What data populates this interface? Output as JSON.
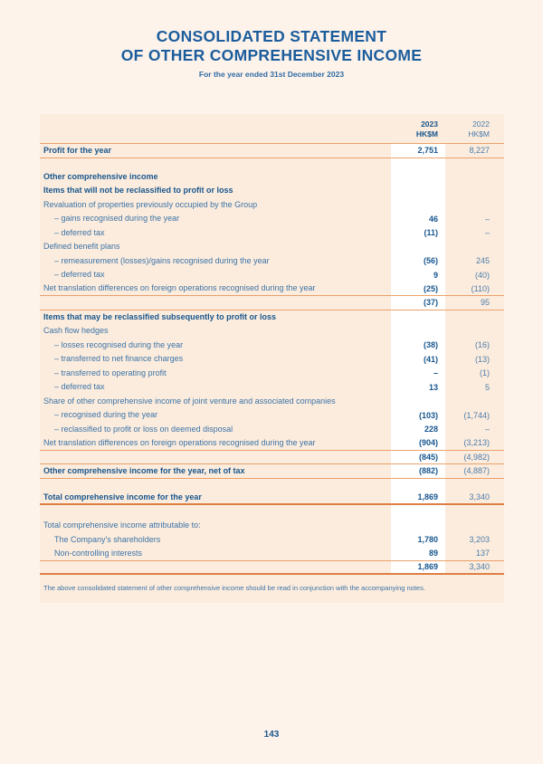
{
  "page": {
    "title_line1": "CONSOLIDATED STATEMENT",
    "title_line2": "OF OTHER COMPREHENSIVE INCOME",
    "subtitle": "For the year ended 31st December 2023",
    "footnote": "The above consolidated statement of other comprehensive income should be read in conjunction with the accompanying notes.",
    "page_number": "143"
  },
  "colors": {
    "page_bg": "#fef3eb",
    "panel_bg": "#fcecdd",
    "stripe_bg": "#ffffff",
    "heading_blue": "#1b5d9c",
    "bold_text_blue": "#17568e",
    "regular_text_blue": "#3a73a7",
    "secondary_value_blue": "#4b7cab",
    "rule_thin_orange": "#eaa26c",
    "rule_thick_orange": "#dd7f42"
  },
  "table": {
    "columns": [
      {
        "year": "2023",
        "unit": "HK$M"
      },
      {
        "year": "2022",
        "unit": "HK$M"
      }
    ],
    "rows": [
      {
        "label": "Profit for the year",
        "bold": true,
        "v2023": "2,751",
        "v2022": "8,227",
        "rule": true
      },
      {
        "type": "spacer",
        "h": 13
      },
      {
        "label": "Other comprehensive income",
        "bold": true
      },
      {
        "label": "Items that will not be reclassified to profit or loss",
        "bold": true
      },
      {
        "label": "Revaluation of properties previously occupied by the Group"
      },
      {
        "label": "– gains recognised during the year",
        "indent": true,
        "v2023": "46",
        "v2022": "–"
      },
      {
        "label": "– deferred tax",
        "indent": true,
        "v2023": "(11)",
        "v2022": "–"
      },
      {
        "label": "Defined benefit plans"
      },
      {
        "label": "– remeasurement (losses)/gains recognised during the year",
        "indent": true,
        "v2023": "(56)",
        "v2022": "245"
      },
      {
        "label": "– deferred tax",
        "indent": true,
        "v2023": "9",
        "v2022": "(40)"
      },
      {
        "label": "Net translation differences on foreign operations recognised during the year",
        "v2023": "(25)",
        "v2022": "(110)",
        "rule": true
      },
      {
        "label": "",
        "v2023": "(37)",
        "v2022": "95",
        "rule": true
      },
      {
        "label": "Items that may be reclassified subsequently to profit or loss",
        "bold": true
      },
      {
        "label": "Cash flow hedges"
      },
      {
        "label": "– losses recognised during the year",
        "indent": true,
        "v2023": "(38)",
        "v2022": "(16)"
      },
      {
        "label": "– transferred to net finance charges",
        "indent": true,
        "v2023": "(41)",
        "v2022": "(13)"
      },
      {
        "label": "– transferred to operating profit",
        "indent": true,
        "v2023": "–",
        "v2022": "(1)"
      },
      {
        "label": "– deferred tax",
        "indent": true,
        "v2023": "13",
        "v2022": "5"
      },
      {
        "label": "Share of other comprehensive income of joint venture and associated companies"
      },
      {
        "label": "– recognised during the year",
        "indent": true,
        "v2023": "(103)",
        "v2022": "(1,744)"
      },
      {
        "label": "– reclassified to profit or loss on deemed disposal",
        "indent": true,
        "v2023": "228",
        "v2022": "–"
      },
      {
        "label": "Net translation differences on foreign operations recognised during the year",
        "v2023": "(904)",
        "v2022": "(3,213)",
        "rule": true
      },
      {
        "label": "",
        "v2023": "(845)",
        "v2022": "(4,982)",
        "rule": true
      },
      {
        "label": "Other comprehensive income for the year, net of tax",
        "bold": true,
        "v2023": "(882)",
        "v2022": "(4,887)",
        "rule": true
      },
      {
        "type": "spacer",
        "h": 14
      },
      {
        "label": "Total comprehensive income for the year",
        "bold": true,
        "v2023": "1,869",
        "v2022": "3,340",
        "thick": true
      },
      {
        "type": "spacer",
        "h": 15
      },
      {
        "label": "Total comprehensive income attributable to:"
      },
      {
        "label": "The Company's shareholders",
        "indent": true,
        "v2023": "1,780",
        "v2022": "3,203"
      },
      {
        "label": "Non-controlling interests",
        "indent": true,
        "v2023": "89",
        "v2022": "137",
        "rule": true
      },
      {
        "label": "",
        "v2023": "1,869",
        "v2022": "3,340",
        "thick": true
      }
    ]
  }
}
